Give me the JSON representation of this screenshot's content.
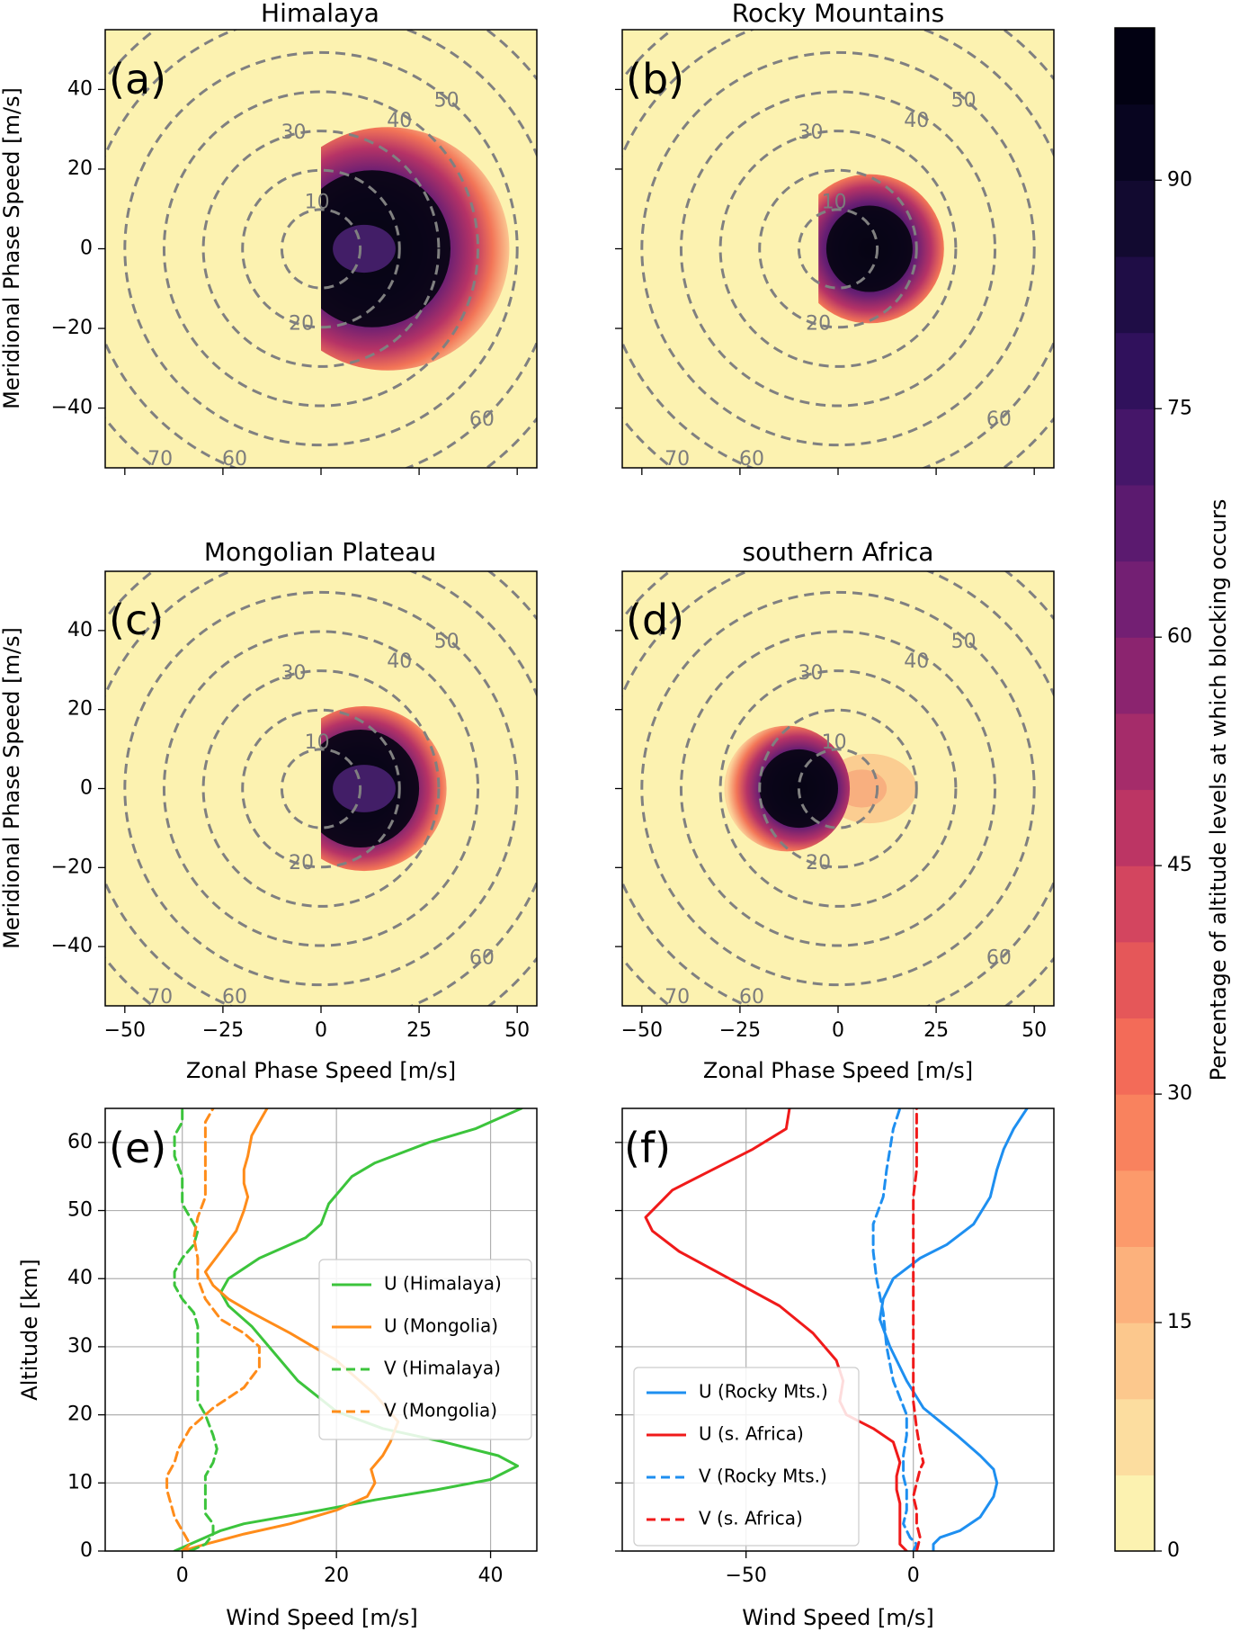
{
  "chart_data": [
    {
      "id": "a",
      "type": "heatmap",
      "panel_label": "(a)",
      "title": "Himalaya",
      "xlabel": "",
      "ylabel": "Meridional Phase Speed [m/s]",
      "xlim": [
        -55,
        55
      ],
      "ylim": [
        -55,
        55
      ],
      "xticks": [],
      "yticks": [
        "40",
        "20",
        "0",
        "−20",
        "−40"
      ],
      "contour_labels": [
        "10",
        "20",
        "30",
        "40",
        "50",
        "60",
        "60",
        "70",
        "70"
      ],
      "blocking_region": {
        "center": [
          17,
          0
        ],
        "radius": 31,
        "min_u": 0
      },
      "core_region": {
        "center": [
          13,
          0
        ],
        "radius": 20,
        "min_u": 0
      }
    },
    {
      "id": "b",
      "type": "heatmap",
      "panel_label": "(b)",
      "title": "Rocky Mountains",
      "xlabel": "",
      "ylabel": "",
      "xlim": [
        -55,
        55
      ],
      "ylim": [
        -55,
        55
      ],
      "xticks": [],
      "yticks": [],
      "contour_labels": [
        "10",
        "20",
        "30",
        "40",
        "50",
        "60",
        "60",
        "70"
      ],
      "blocking_region": {
        "center": [
          8,
          0
        ],
        "radius": 19,
        "min_u": -5
      },
      "core_region": {
        "center": [
          8,
          0
        ],
        "radius": 11,
        "min_u": -4
      }
    },
    {
      "id": "c",
      "type": "heatmap",
      "panel_label": "(c)",
      "title": "Mongolian Plateau",
      "xlabel": "Zonal Phase Speed [m/s]",
      "ylabel": "Meridional Phase Speed [m/s]",
      "xlim": [
        -55,
        55
      ],
      "ylim": [
        -55,
        55
      ],
      "xticks": [
        "−50",
        "−25",
        "0",
        "25",
        "50"
      ],
      "yticks": [
        "40",
        "20",
        "0",
        "−20",
        "−40"
      ],
      "contour_labels": [
        "10",
        "20",
        "30",
        "40",
        "50",
        "60",
        "60",
        "70",
        "70"
      ],
      "blocking_region": {
        "center": [
          11,
          0
        ],
        "radius": 21,
        "min_u": 0
      },
      "core_region": {
        "center": [
          10,
          0
        ],
        "radius": 15,
        "min_u": 0
      }
    },
    {
      "id": "d",
      "type": "heatmap",
      "panel_label": "(d)",
      "title": "southern Africa",
      "xlabel": "Zonal Phase Speed [m/s]",
      "ylabel": "",
      "xlim": [
        -55,
        55
      ],
      "ylim": [
        -55,
        55
      ],
      "xticks": [
        "−50",
        "−25",
        "0",
        "25",
        "50"
      ],
      "yticks": [],
      "contour_labels": [
        "10",
        "20",
        "30",
        "40",
        "50",
        "60",
        "60",
        "70"
      ],
      "blocking_region": {
        "center": [
          -13,
          0
        ],
        "radius": 16,
        "min_u": -30
      },
      "core_region": {
        "center": [
          -10,
          0
        ],
        "radius": 10,
        "min_u": -20
      },
      "tail_region": {
        "center": [
          8,
          0
        ],
        "radius": 8
      }
    },
    {
      "id": "e",
      "type": "line",
      "panel_label": "(e)",
      "xlabel": "Wind Speed [m/s]",
      "ylabel": "Altitude [km]",
      "xlim": [
        -10,
        46
      ],
      "ylim": [
        0,
        65
      ],
      "xticks": [
        0,
        20,
        40
      ],
      "yticks": [
        0,
        10,
        20,
        30,
        40,
        50,
        60
      ],
      "legend_location": "center-right",
      "series": [
        {
          "name": "U (Himalaya)",
          "color": "#3cc43c",
          "dash": "solid",
          "points": [
            [
              -1,
              0
            ],
            [
              0,
              0.5
            ],
            [
              1,
              1
            ],
            [
              2,
              1.5
            ],
            [
              3,
              2
            ],
            [
              5,
              3
            ],
            [
              8,
              4
            ],
            [
              13,
              5
            ],
            [
              18,
              6
            ],
            [
              25,
              7.5
            ],
            [
              33,
              9
            ],
            [
              40,
              10.5
            ],
            [
              43.5,
              12.5
            ],
            [
              41,
              14
            ],
            [
              34,
              16
            ],
            [
              26,
              18
            ],
            [
              20,
              20.5
            ],
            [
              15,
              25
            ],
            [
              12,
              29
            ],
            [
              9,
              33
            ],
            [
              6,
              36
            ],
            [
              5,
              38
            ],
            [
              6,
              40
            ],
            [
              10,
              43
            ],
            [
              16,
              46
            ],
            [
              18,
              48
            ],
            [
              19,
              51
            ],
            [
              22,
              55
            ],
            [
              25,
              57
            ],
            [
              32,
              60
            ],
            [
              38,
              62
            ],
            [
              44,
              65
            ]
          ]
        },
        {
          "name": "U (Mongolia)",
          "color": "#ff8c1a",
          "dash": "solid",
          "points": [
            [
              0,
              0
            ],
            [
              3,
              1
            ],
            [
              8,
              2.5
            ],
            [
              14,
              4
            ],
            [
              20,
              6
            ],
            [
              24,
              8
            ],
            [
              25,
              10
            ],
            [
              24.5,
              12
            ],
            [
              26,
              14
            ],
            [
              27,
              16
            ],
            [
              28,
              19
            ],
            [
              25,
              23
            ],
            [
              20,
              28
            ],
            [
              14,
              32
            ],
            [
              9,
              35
            ],
            [
              6,
              37
            ],
            [
              4,
              39
            ],
            [
              3,
              41
            ],
            [
              5,
              44
            ],
            [
              7,
              47
            ],
            [
              8,
              50
            ],
            [
              8.5,
              52
            ],
            [
              8,
              54
            ],
            [
              8,
              56
            ],
            [
              8.5,
              58
            ],
            [
              9,
              61
            ],
            [
              10,
              63
            ],
            [
              11,
              65
            ]
          ]
        },
        {
          "name": "V (Himalaya)",
          "color": "#3cc43c",
          "dash": "dashed",
          "points": [
            [
              1,
              0
            ],
            [
              3,
              1
            ],
            [
              4,
              2.5
            ],
            [
              4,
              4
            ],
            [
              3,
              5.5
            ],
            [
              3,
              7.5
            ],
            [
              3,
              9.5
            ],
            [
              3,
              11
            ],
            [
              4,
              13
            ],
            [
              4.5,
              15
            ],
            [
              4,
              17
            ],
            [
              3,
              20
            ],
            [
              2,
              22
            ],
            [
              2,
              24
            ],
            [
              2,
              27
            ],
            [
              2,
              30
            ],
            [
              2,
              33
            ],
            [
              1.5,
              35
            ],
            [
              0,
              37
            ],
            [
              -1,
              39
            ],
            [
              -1,
              41
            ],
            [
              0,
              43
            ],
            [
              1.5,
              45
            ],
            [
              2,
              47
            ],
            [
              1,
              49
            ],
            [
              0,
              51
            ],
            [
              0,
              55
            ],
            [
              -1,
              58
            ],
            [
              -1,
              61
            ],
            [
              0,
              63
            ],
            [
              0,
              65
            ]
          ]
        },
        {
          "name": "V (Mongolia)",
          "color": "#ff8c1a",
          "dash": "dashed",
          "points": [
            [
              0,
              0
            ],
            [
              1,
              1
            ],
            [
              0,
              3
            ],
            [
              -1,
              5
            ],
            [
              -1.5,
              7
            ],
            [
              -2,
              9
            ],
            [
              -2,
              11
            ],
            [
              -1,
              13
            ],
            [
              -0.5,
              15
            ],
            [
              1,
              18
            ],
            [
              4,
              21
            ],
            [
              8,
              24
            ],
            [
              10,
              27
            ],
            [
              10,
              30
            ],
            [
              8,
              32
            ],
            [
              5,
              34
            ],
            [
              3,
              37
            ],
            [
              2,
              40
            ],
            [
              2,
              43
            ],
            [
              1.5,
              46
            ],
            [
              2,
              49
            ],
            [
              3,
              52
            ],
            [
              3,
              55
            ],
            [
              3,
              58
            ],
            [
              3,
              61
            ],
            [
              3,
              63
            ],
            [
              4,
              65
            ]
          ]
        }
      ]
    },
    {
      "id": "f",
      "type": "line",
      "panel_label": "(f)",
      "xlabel": "Wind Speed [m/s]",
      "ylabel": "",
      "xlim": [
        -87,
        42
      ],
      "ylim": [
        0,
        65
      ],
      "xticks": [
        -50,
        0
      ],
      "yticks": [
        0,
        10,
        20,
        30,
        40,
        50,
        60
      ],
      "legend_location": "lower-left",
      "series": [
        {
          "name": "U (Rocky Mts.)",
          "color": "#1e8ff0",
          "dash": "solid",
          "points": [
            [
              6,
              0
            ],
            [
              6,
              1
            ],
            [
              8,
              2
            ],
            [
              14,
              3
            ],
            [
              20,
              5
            ],
            [
              24,
              8
            ],
            [
              25,
              10
            ],
            [
              24,
              12
            ],
            [
              20,
              14
            ],
            [
              13,
              17
            ],
            [
              3,
              21
            ],
            [
              -2,
              25
            ],
            [
              -7,
              30
            ],
            [
              -10,
              34
            ],
            [
              -9,
              37
            ],
            [
              -6,
              40
            ],
            [
              2,
              43
            ],
            [
              10,
              45
            ],
            [
              18,
              48
            ],
            [
              23,
              52
            ],
            [
              25,
              56
            ],
            [
              27,
              59
            ],
            [
              30,
              62
            ],
            [
              34,
              65
            ]
          ]
        },
        {
          "name": "U (s. Africa)",
          "color": "#f01a1a",
          "dash": "solid",
          "points": [
            [
              -2,
              0
            ],
            [
              -4,
              1
            ],
            [
              -4,
              3
            ],
            [
              -4,
              5
            ],
            [
              -4,
              7
            ],
            [
              -5,
              9
            ],
            [
              -5,
              11
            ],
            [
              -4,
              13
            ],
            [
              -6,
              16
            ],
            [
              -12,
              18
            ],
            [
              -20,
              20
            ],
            [
              -22,
              22
            ],
            [
              -21,
              25
            ],
            [
              -23,
              28
            ],
            [
              -30,
              32
            ],
            [
              -40,
              36
            ],
            [
              -55,
              40
            ],
            [
              -70,
              44
            ],
            [
              -78,
              47
            ],
            [
              -80,
              49
            ],
            [
              -72,
              53
            ],
            [
              -60,
              56
            ],
            [
              -48,
              59
            ],
            [
              -38,
              62
            ],
            [
              -37,
              65
            ]
          ]
        },
        {
          "name": "V (Rocky Mts.)",
          "color": "#1e8ff0",
          "dash": "dashed",
          "points": [
            [
              0,
              0
            ],
            [
              1,
              1
            ],
            [
              -1,
              2
            ],
            [
              -3,
              4
            ],
            [
              -2,
              6
            ],
            [
              -2,
              9
            ],
            [
              -3,
              11
            ],
            [
              -3,
              14
            ],
            [
              -2,
              17
            ],
            [
              -2,
              20
            ],
            [
              -6,
              25
            ],
            [
              -8,
              30
            ],
            [
              -9,
              35
            ],
            [
              -11,
              40
            ],
            [
              -12,
              44
            ],
            [
              -12,
              48
            ],
            [
              -9,
              52
            ],
            [
              -8,
              56
            ],
            [
              -7,
              59
            ],
            [
              -6,
              62
            ],
            [
              -4,
              65
            ]
          ]
        },
        {
          "name": "V (s. Africa)",
          "color": "#f01a1a",
          "dash": "dashed",
          "points": [
            [
              1,
              0
            ],
            [
              2,
              2
            ],
            [
              1,
              4
            ],
            [
              1,
              6
            ],
            [
              0,
              8
            ],
            [
              1,
              10
            ],
            [
              2,
              12
            ],
            [
              3,
              13
            ],
            [
              2,
              15
            ],
            [
              1,
              18
            ],
            [
              0,
              22
            ],
            [
              0,
              26
            ],
            [
              0,
              30
            ],
            [
              0,
              35
            ],
            [
              0,
              40
            ],
            [
              0,
              44
            ],
            [
              0,
              48
            ],
            [
              0,
              52
            ],
            [
              1,
              56
            ],
            [
              1,
              60
            ],
            [
              1,
              65
            ]
          ]
        }
      ]
    }
  ],
  "colorbar": {
    "label": "Percentage of altitude levels at which blocking occurs",
    "ticks": [
      "0",
      "15",
      "30",
      "45",
      "60",
      "75",
      "90"
    ],
    "tick_values": [
      0,
      15,
      30,
      45,
      60,
      75,
      90
    ],
    "max": 100,
    "levels": 20,
    "colors": [
      "#fcf2b0",
      "#fcdd9f",
      "#fcc88d",
      "#fcb17c",
      "#fc9a6b",
      "#f9825e",
      "#f36b58",
      "#e55759",
      "#d3455f",
      "#bc3564",
      "#a52c6a",
      "#8b246f",
      "#731f73",
      "#5b1a6f",
      "#451669",
      "#30115c",
      "#1f0d46",
      "#120a30",
      "#080520",
      "#020112"
    ]
  }
}
